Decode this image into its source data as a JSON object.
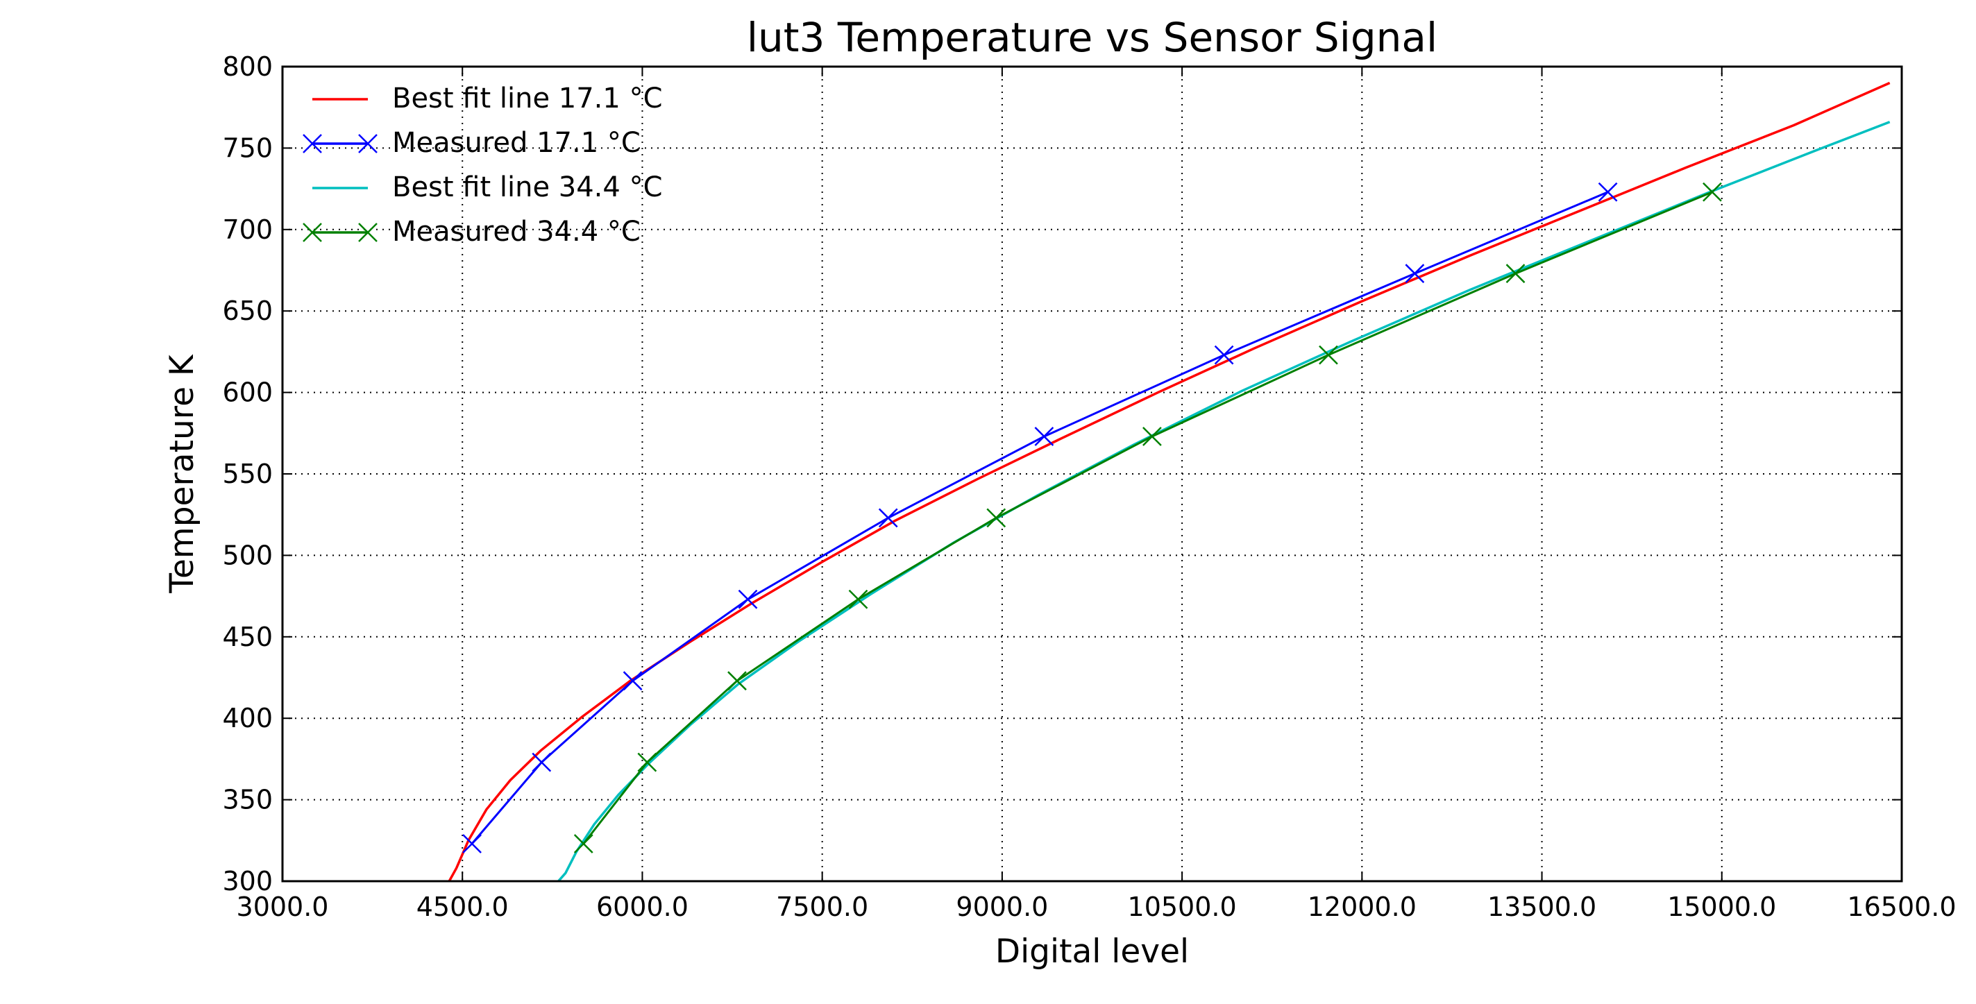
{
  "chart_data": {
    "type": "line",
    "title": "lut3 Temperature vs Sensor Signal",
    "xlabel": "Digital level",
    "ylabel": "Temperature K",
    "xlim": [
      3000,
      16500
    ],
    "ylim": [
      300,
      800
    ],
    "x_ticks": [
      "3000.0",
      "4500.0",
      "6000.0",
      "7500.0",
      "9000.0",
      "10500.0",
      "12000.0",
      "13500.0",
      "15000.0",
      "16500.0"
    ],
    "y_ticks": [
      "300",
      "350",
      "400",
      "450",
      "500",
      "550",
      "600",
      "650",
      "700",
      "750",
      "800"
    ],
    "grid": true,
    "legend_position": "top-left",
    "series": [
      {
        "name": "Best fit line 17.1 °C",
        "style": "line",
        "color": "#ff0000",
        "x": [
          4390,
          4450,
          4550,
          4700,
          4900,
          5150,
          5500,
          5900,
          6400,
          6900,
          7500,
          8100,
          8800,
          9500,
          10300,
          11100,
          12000,
          12900,
          13800,
          14700,
          15600,
          16400
        ],
        "y": [
          300,
          308,
          325,
          344,
          362,
          380,
          401,
          423,
          447,
          470,
          496,
          521,
          547,
          572,
          600,
          627,
          656,
          684,
          711,
          738,
          764,
          790
        ]
      },
      {
        "name": "Measured 17.1 °C",
        "style": "line-marker",
        "color": "#0000ff",
        "x": [
          4580,
          5160,
          5920,
          6880,
          8050,
          9350,
          10850,
          12440,
          14050
        ],
        "y": [
          323,
          373,
          423,
          473,
          523,
          573,
          623,
          673,
          723
        ]
      },
      {
        "name": "Best fit line 34.4 °C",
        "style": "line",
        "color": "#00bfbf",
        "x": [
          5300,
          5360,
          5450,
          5600,
          5800,
          6050,
          6400,
          6800,
          7300,
          7900,
          8600,
          9300,
          10100,
          11000,
          11900,
          12900,
          13900,
          14900,
          15800,
          16400
        ],
        "y": [
          300,
          305,
          318,
          335,
          353,
          372,
          396,
          421,
          447,
          476,
          508,
          537,
          568,
          601,
          631,
          663,
          693,
          723,
          749,
          766
        ]
      },
      {
        "name": "Measured 34.4 °C",
        "style": "line-marker",
        "color": "#008000",
        "x": [
          5510,
          6040,
          6790,
          7800,
          8950,
          10250,
          11720,
          13280,
          14920
        ],
        "y": [
          323,
          373,
          423,
          473,
          523,
          573,
          623,
          673,
          723
        ]
      }
    ]
  }
}
